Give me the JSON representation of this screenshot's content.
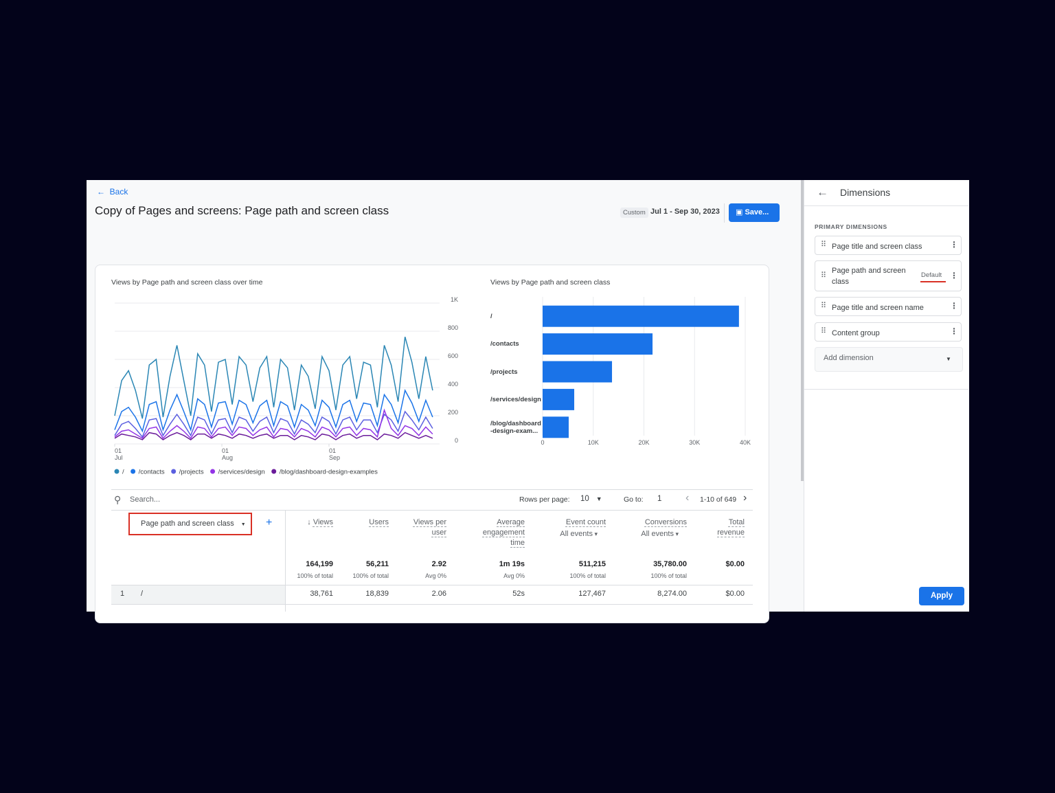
{
  "header": {
    "back": "Back",
    "title": "Copy of Pages and screens: Page path and screen class",
    "date_chip": "Custom",
    "date_range": "Jul 1 - Sep 30, 2023",
    "save": "Save..."
  },
  "chart_data": [
    {
      "type": "line",
      "title": "Views by Page path and screen class over time",
      "x": [
        0,
        2,
        4,
        6,
        8,
        10,
        12,
        14,
        16,
        18,
        20,
        22,
        24,
        26,
        28,
        30,
        32,
        34,
        36,
        38,
        40,
        42,
        44,
        46,
        48,
        50,
        52,
        54,
        56,
        58,
        60,
        62,
        64,
        66,
        68,
        70,
        72,
        74,
        76,
        78,
        80,
        82,
        84,
        86,
        88,
        90,
        92
      ],
      "xlim": [
        0,
        94
      ],
      "xticks": [
        {
          "value": 0,
          "label": "01",
          "month": "Jul"
        },
        {
          "value": 31,
          "label": "01",
          "month": "Aug"
        },
        {
          "value": 62,
          "label": "01",
          "month": "Sep"
        }
      ],
      "ylim": [
        0,
        1000
      ],
      "yticks": [
        0,
        200,
        400,
        600,
        800,
        {
          "value": 1000,
          "label": "1K"
        }
      ],
      "grid": true,
      "series": [
        {
          "name": "/",
          "color": "#2a86b4",
          "values": [
            200,
            450,
            520,
            380,
            180,
            560,
            600,
            190,
            480,
            700,
            450,
            200,
            640,
            560,
            230,
            580,
            600,
            280,
            620,
            560,
            300,
            540,
            620,
            260,
            600,
            540,
            240,
            560,
            480,
            250,
            620,
            520,
            240,
            560,
            620,
            320,
            580,
            560,
            260,
            700,
            560,
            300,
            760,
            580,
            320,
            620,
            380
          ]
        },
        {
          "name": "/contacts",
          "color": "#1a73e8",
          "values": [
            100,
            230,
            260,
            190,
            90,
            280,
            300,
            100,
            240,
            350,
            230,
            100,
            320,
            280,
            120,
            290,
            300,
            140,
            310,
            280,
            150,
            270,
            310,
            130,
            300,
            270,
            120,
            280,
            240,
            130,
            310,
            260,
            120,
            280,
            310,
            160,
            290,
            280,
            130,
            350,
            280,
            150,
            380,
            290,
            160,
            310,
            190
          ]
        },
        {
          "name": "/projects",
          "color": "#5b5fe0",
          "values": [
            60,
            140,
            160,
            110,
            50,
            170,
            180,
            60,
            140,
            210,
            140,
            60,
            190,
            170,
            70,
            170,
            180,
            80,
            190,
            170,
            90,
            160,
            190,
            80,
            180,
            160,
            70,
            170,
            140,
            80,
            190,
            160,
            70,
            170,
            190,
            100,
            170,
            170,
            80,
            210,
            170,
            90,
            230,
            170,
            100,
            190,
            110
          ]
        },
        {
          "name": "/services/design",
          "color": "#9334e6",
          "values": [
            50,
            90,
            100,
            70,
            40,
            110,
            120,
            40,
            90,
            130,
            90,
            40,
            120,
            110,
            50,
            110,
            120,
            60,
            120,
            110,
            60,
            100,
            120,
            50,
            110,
            100,
            50,
            110,
            90,
            50,
            120,
            100,
            50,
            110,
            120,
            60,
            110,
            100,
            50,
            240,
            110,
            60,
            130,
            110,
            60,
            120,
            70
          ]
        },
        {
          "name": "/blog/dashboard-design-examples",
          "color": "#6a1b9a",
          "values": [
            40,
            70,
            60,
            50,
            30,
            80,
            70,
            30,
            60,
            80,
            60,
            30,
            70,
            70,
            40,
            70,
            60,
            40,
            70,
            60,
            40,
            60,
            70,
            40,
            60,
            60,
            30,
            60,
            50,
            30,
            70,
            60,
            30,
            60,
            70,
            40,
            60,
            60,
            30,
            70,
            60,
            40,
            80,
            60,
            40,
            60,
            40
          ]
        }
      ]
    },
    {
      "type": "bar",
      "orientation": "horizontal",
      "title": "Views by Page path and screen class",
      "categories": [
        "/",
        "/contacts",
        "/projects",
        "/services/design",
        "/blog/dashboard-design-exam..."
      ],
      "values": [
        38761,
        21700,
        13700,
        6240,
        5150
      ],
      "color": "#1a73e8",
      "xlim": [
        0,
        40000
      ],
      "xticks": [
        0,
        {
          "value": 10000,
          "label": "10K"
        },
        {
          "value": 20000,
          "label": "20K"
        },
        {
          "value": 30000,
          "label": "30K"
        },
        {
          "value": 40000,
          "label": "40K"
        }
      ],
      "grid": true
    }
  ],
  "table": {
    "search": "Search...",
    "rows_per_page_label": "Rows per page:",
    "rows_per_page": "10",
    "go_to_label": "Go to:",
    "go_to": "1",
    "pagination": "1-10 of 649",
    "dimension": "Page path and screen class",
    "columns": [
      {
        "label": "Views"
      },
      {
        "label": "Users"
      },
      {
        "label": "Views per user"
      },
      {
        "label": "Average engagement time"
      },
      {
        "label": "Event count",
        "sub": "All events"
      },
      {
        "label": "Conversions",
        "sub": "All events"
      },
      {
        "label": "Total revenue"
      }
    ],
    "totals": [
      {
        "value": "164,199",
        "note": "100% of total"
      },
      {
        "value": "56,211",
        "note": "100% of total"
      },
      {
        "value": "2.92",
        "note": "Avg 0%"
      },
      {
        "value": "1m 19s",
        "note": "Avg 0%"
      },
      {
        "value": "511,215",
        "note": "100% of total"
      },
      {
        "value": "35,780.00",
        "note": "100% of total"
      },
      {
        "value": "$0.00"
      }
    ],
    "rows": [
      [
        "1",
        "/",
        "38,761",
        "18,839",
        "2.06",
        "52s",
        "127,467",
        "8,274.00",
        "$0.00"
      ]
    ]
  },
  "sidebar": {
    "title": "Dimensions",
    "section": "PRIMARY DIMENSIONS",
    "items": [
      {
        "label": "Page title and screen class"
      },
      {
        "label": "Page path and screen class",
        "badge": "Default"
      },
      {
        "label": "Page title and screen name"
      },
      {
        "label": "Content group"
      }
    ],
    "add": "Add dimension",
    "apply": "Apply"
  }
}
